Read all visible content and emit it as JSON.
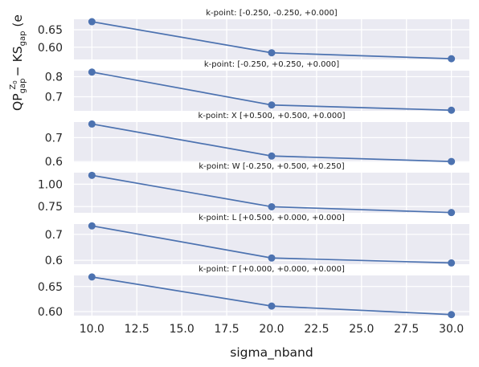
{
  "figure": {
    "xlabel": "sigma_nband",
    "ylabel_parts": {
      "qp": "QP",
      "qp_sub": "gap",
      "qp_sup": "Z",
      "qp_sup_sub": "0",
      "minus": " − KS",
      "ks_sub": "gap",
      "unit": " (e"
    }
  },
  "colors": {
    "panel_bg": "#eaeaf2",
    "grid": "#ffffff",
    "line": "#4c72b0",
    "text": "#262626"
  },
  "chart_data": [
    {
      "type": "line",
      "title": "k-point: [-0.250, -0.250, +0.000]",
      "x": [
        10,
        20,
        30
      ],
      "y": [
        0.673,
        0.584,
        0.567
      ],
      "ylim": [
        0.565,
        0.68
      ],
      "yticks": [
        0.6,
        0.65
      ],
      "ytick_labels": [
        "0.60",
        "0.65"
      ],
      "xlim": [
        9.0,
        31.0
      ],
      "grid": true
    },
    {
      "type": "line",
      "title": "k-point: [-0.250, +0.250, +0.000]",
      "x": [
        10,
        20,
        30
      ],
      "y": [
        0.823,
        0.659,
        0.633
      ],
      "ylim": [
        0.63,
        0.83
      ],
      "yticks": [
        0.7,
        0.8
      ],
      "ytick_labels": [
        "0.7",
        "0.8"
      ],
      "xlim": [
        9.0,
        31.0
      ],
      "grid": true
    },
    {
      "type": "line",
      "title": "k-point: X [+0.500, +0.500, +0.000]",
      "x": [
        10,
        20,
        30
      ],
      "y": [
        0.757,
        0.623,
        0.6
      ],
      "ylim": [
        0.597,
        0.765
      ],
      "yticks": [
        0.6,
        0.7
      ],
      "ytick_labels": [
        "0.6",
        "0.7"
      ],
      "xlim": [
        9.0,
        31.0
      ],
      "grid": true
    },
    {
      "type": "line",
      "title": "k-point: W [-0.250, +0.500, +0.250]",
      "x": [
        10,
        20,
        30
      ],
      "y": [
        1.1,
        0.748,
        0.683
      ],
      "ylim": [
        0.68,
        1.13
      ],
      "yticks": [
        0.75,
        1.0
      ],
      "ytick_labels": [
        "0.75",
        "1.00"
      ],
      "xlim": [
        9.0,
        31.0
      ],
      "grid": true
    },
    {
      "type": "line",
      "title": "k-point: L [+0.500, +0.000, +0.000]",
      "x": [
        10,
        20,
        30
      ],
      "y": [
        0.733,
        0.609,
        0.59
      ],
      "ylim": [
        0.585,
        0.74
      ],
      "yticks": [
        0.6,
        0.7
      ],
      "ytick_labels": [
        "0.6",
        "0.7"
      ],
      "xlim": [
        9.0,
        31.0
      ],
      "grid": true
    },
    {
      "type": "line",
      "title": "k-point: Γ [+0.000, +0.000, +0.000]",
      "x": [
        10,
        20,
        30
      ],
      "y": [
        0.669,
        0.611,
        0.594
      ],
      "ylim": [
        0.592,
        0.672
      ],
      "yticks": [
        0.6,
        0.65
      ],
      "ytick_labels": [
        "0.60",
        "0.65"
      ],
      "xlim": [
        9.0,
        31.0
      ],
      "grid": true
    }
  ],
  "x_axis": {
    "ticks": [
      10,
      12.5,
      15,
      17.5,
      20,
      22.5,
      25,
      27.5,
      30
    ],
    "tick_labels": [
      "10.0",
      "12.5",
      "15.0",
      "17.5",
      "20.0",
      "22.5",
      "25.0",
      "27.5",
      "30.0"
    ]
  }
}
